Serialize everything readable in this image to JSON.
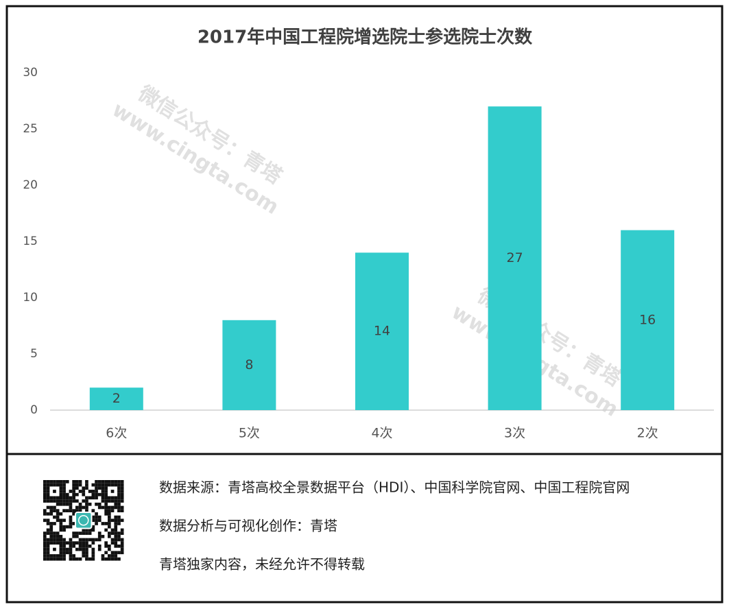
{
  "chart_data": {
    "type": "bar",
    "title": "2017年中国工程院增选院士参选院士次数",
    "categories": [
      "6次",
      "5次",
      "4次",
      "3次",
      "2次"
    ],
    "values": [
      2,
      8,
      14,
      27,
      16
    ],
    "color": "#33cccc",
    "ylim": [
      0,
      30
    ],
    "yticks": [
      0,
      5,
      10,
      15,
      20,
      25,
      30
    ],
    "grid": false,
    "watermark": [
      "微信公众号：青塔",
      "www.cingta.com"
    ]
  },
  "footer": {
    "lines": [
      "数据来源：青塔高校全景数据平台（HDI）、中国科学院官网、中国工程院官网",
      "数据分析与可视化创作：青塔",
      "青塔独家内容，未经允许不得转载"
    ]
  }
}
